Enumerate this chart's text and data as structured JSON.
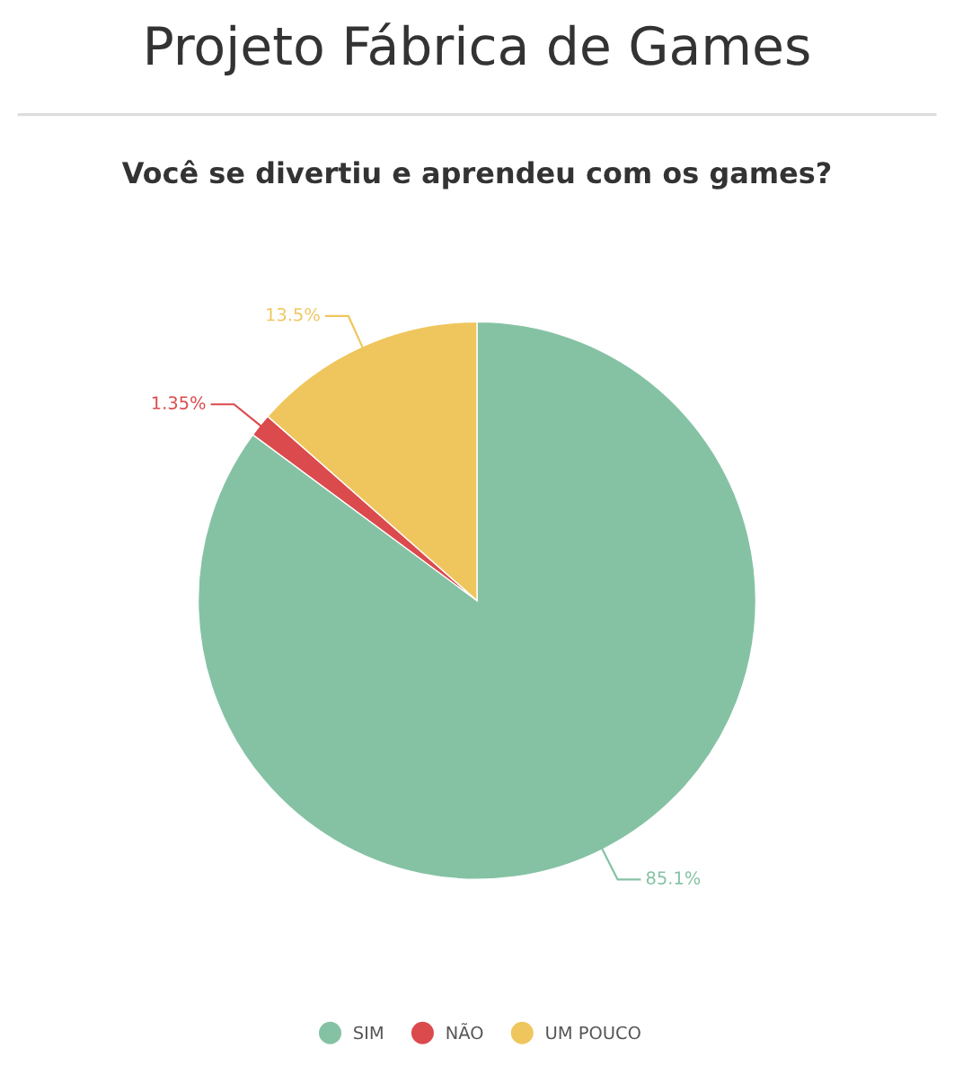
{
  "chart_data": {
    "type": "pie",
    "title": "Projeto Fábrica de Games",
    "subtitle": "Você se divertiu e aprendeu com os games?",
    "categories": [
      "SIM",
      "NÃO",
      "UM POUCO"
    ],
    "values": [
      85.1,
      1.35,
      13.5
    ],
    "value_labels": [
      "85.1%",
      "1.35%",
      "13.5%"
    ],
    "colors": [
      "#85c2a4",
      "#db4a4d",
      "#efc65e"
    ],
    "legend": "bottom"
  }
}
